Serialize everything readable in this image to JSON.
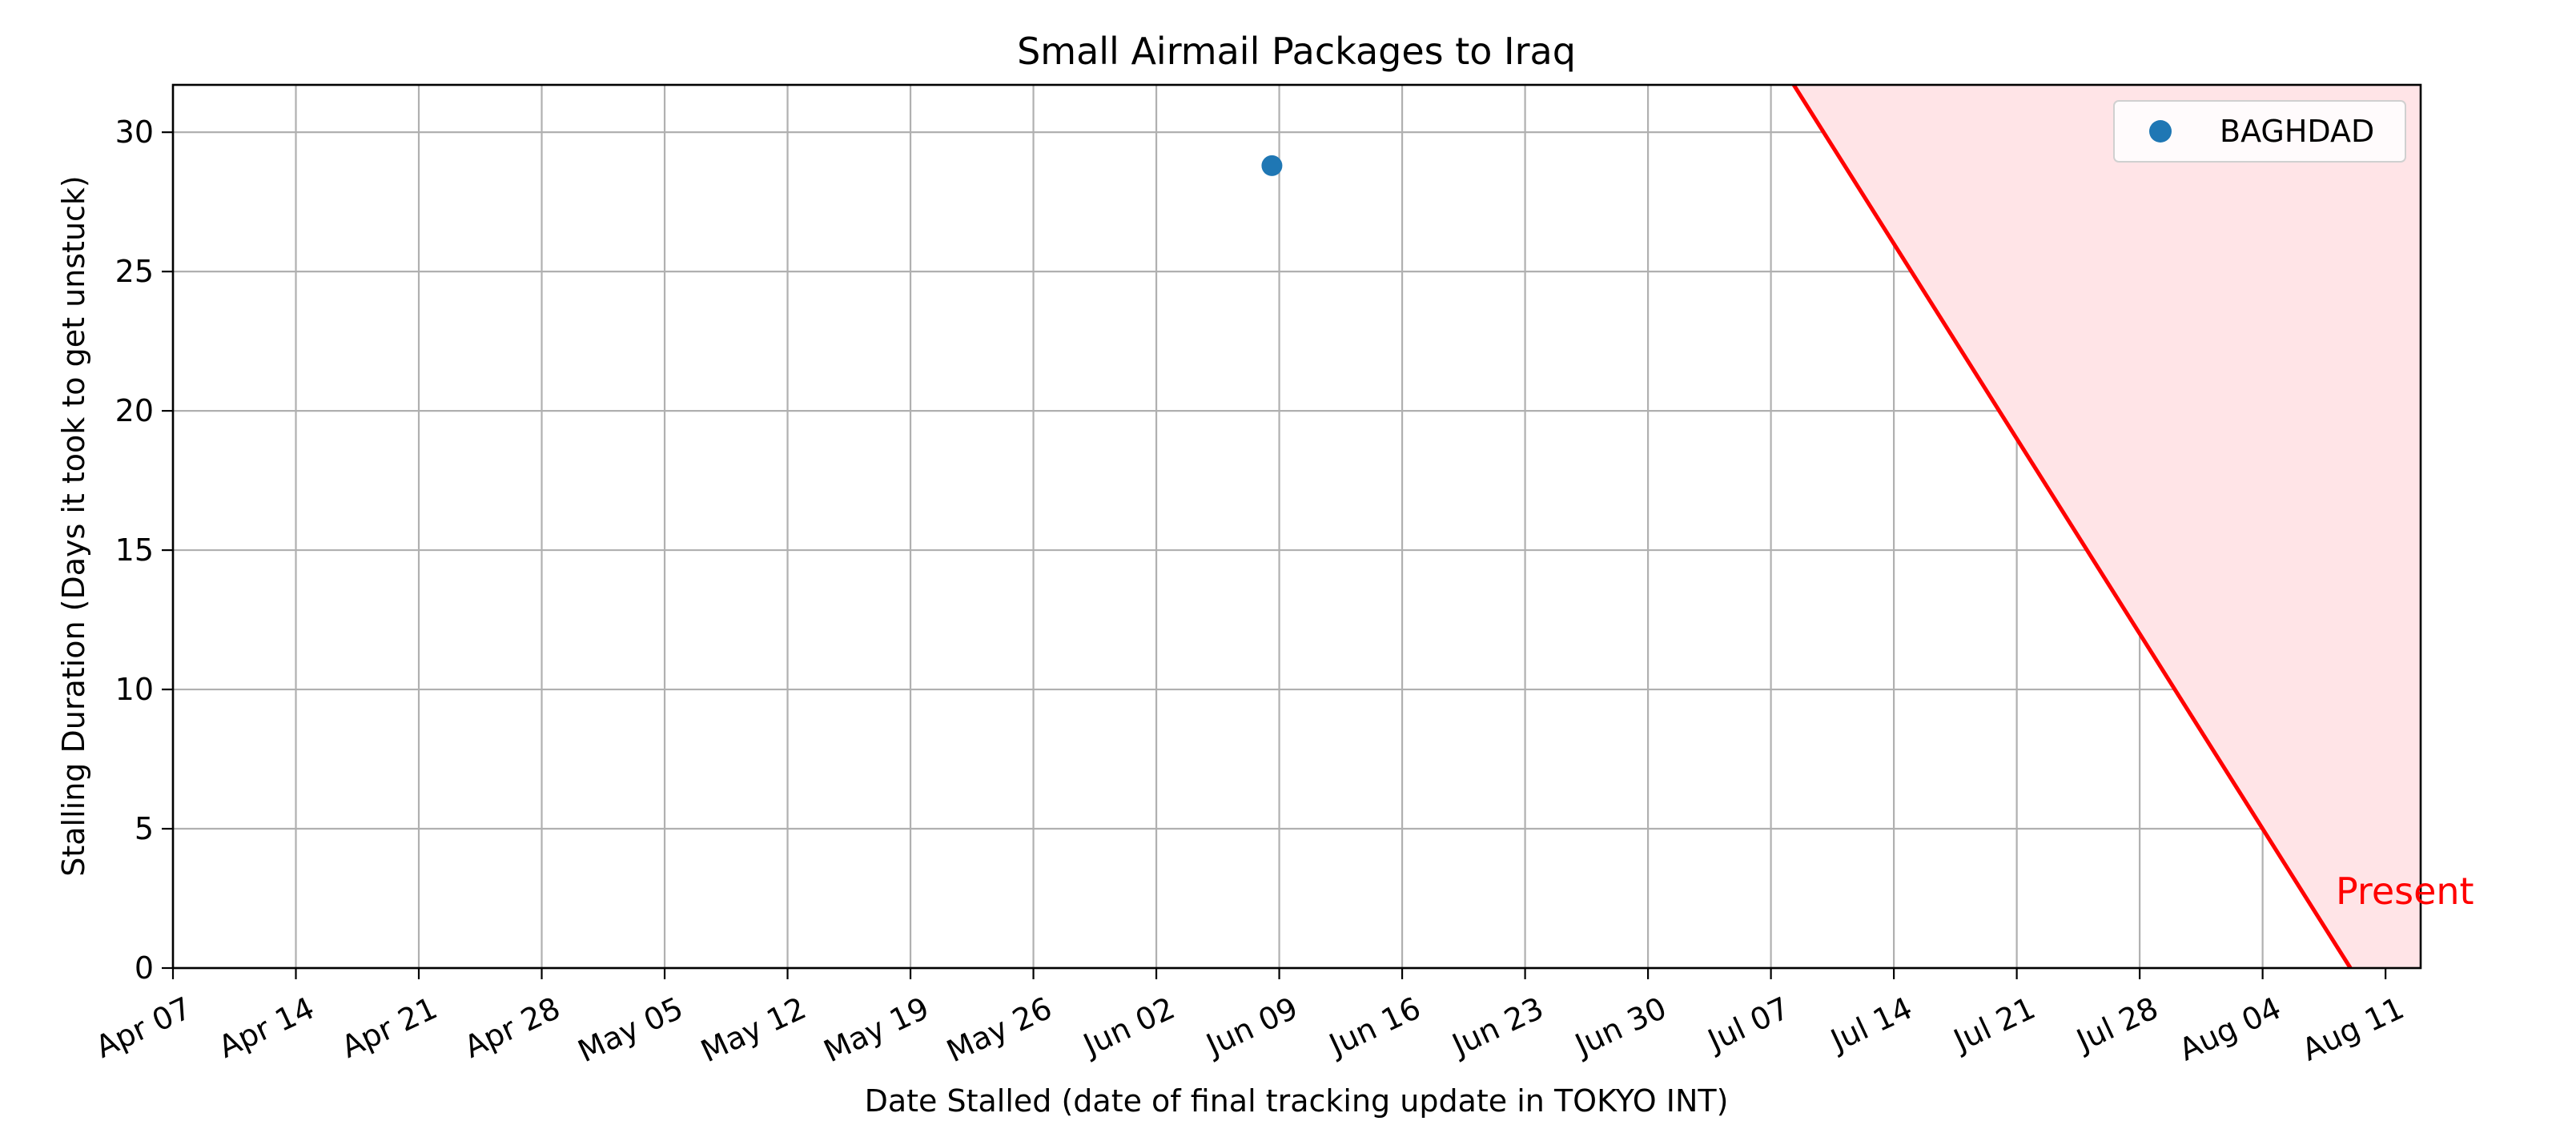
{
  "chart_data": {
    "type": "scatter",
    "title": "Small Airmail Packages to Iraq",
    "xlabel": "Date Stalled (date of final tracking update in TOKYO INT)",
    "ylabel": "Stalling Duration (Days it took to get unstuck)",
    "xlim": [
      "2023-04-07",
      "2023-08-13"
    ],
    "ylim": [
      0,
      31.7
    ],
    "x_ticks": [
      "2023-04-07",
      "2023-04-14",
      "2023-04-21",
      "2023-04-28",
      "2023-05-05",
      "2023-05-12",
      "2023-05-19",
      "2023-05-26",
      "2023-06-02",
      "2023-06-09",
      "2023-06-16",
      "2023-06-23",
      "2023-06-30",
      "2023-07-07",
      "2023-07-14",
      "2023-07-21",
      "2023-07-28",
      "2023-08-04",
      "2023-08-11"
    ],
    "x_tick_labels": [
      "Apr 07",
      "Apr 14",
      "Apr 21",
      "Apr 28",
      "May 05",
      "May 12",
      "May 19",
      "May 26",
      "Jun 02",
      "Jun 09",
      "Jun 16",
      "Jun 23",
      "Jun 30",
      "Jul 07",
      "Jul 14",
      "Jul 21",
      "Jul 28",
      "Aug 04",
      "Aug 11"
    ],
    "y_ticks": [
      0,
      5,
      10,
      15,
      20,
      25,
      30
    ],
    "y_tick_labels": [
      "0",
      "5",
      "10",
      "15",
      "20",
      "25",
      "30"
    ],
    "grid": true,
    "legend_position": "top-right",
    "series": [
      {
        "name": "BAGHDAD",
        "color": "#1f77b4",
        "points": [
          {
            "x": "2023-06-08T14:00",
            "y": 28.8
          }
        ]
      }
    ],
    "present_line": {
      "label": "Present",
      "date": "2023-08-09",
      "color": "#ff0000",
      "fill_color": "#ffe4e7"
    }
  }
}
